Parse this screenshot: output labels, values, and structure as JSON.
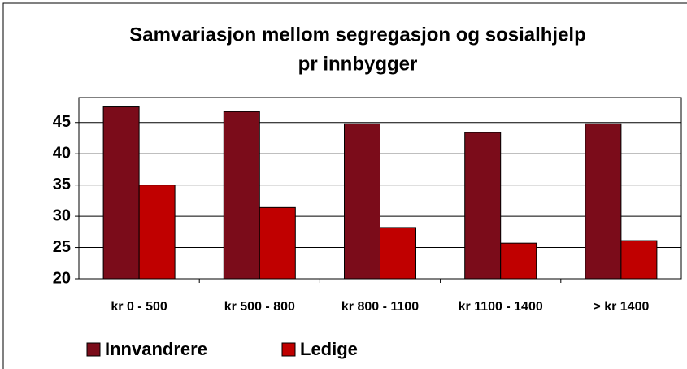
{
  "chart_data": {
    "type": "bar",
    "title": "Samvariasjon mellom segregasjon og sosialhjelp",
    "subtitle": "pr innbygger",
    "categories": [
      "kr 0 - 500",
      "kr 500 - 800",
      "kr 800 - 1100",
      "kr 1100 - 1400",
      "> kr 1400"
    ],
    "series": [
      {
        "name": "Innvandrere",
        "color": "#7b0c1a",
        "values": [
          47.5,
          46.75,
          44.8,
          43.4,
          44.8
        ]
      },
      {
        "name": "Ledige",
        "color": "#c00000",
        "values": [
          35,
          31.4,
          28.2,
          25.7,
          26.1
        ]
      }
    ],
    "ylim": [
      20,
      49
    ],
    "yticks": [
      20,
      25,
      30,
      35,
      40,
      45
    ],
    "grid": true,
    "legend": "bottom"
  }
}
